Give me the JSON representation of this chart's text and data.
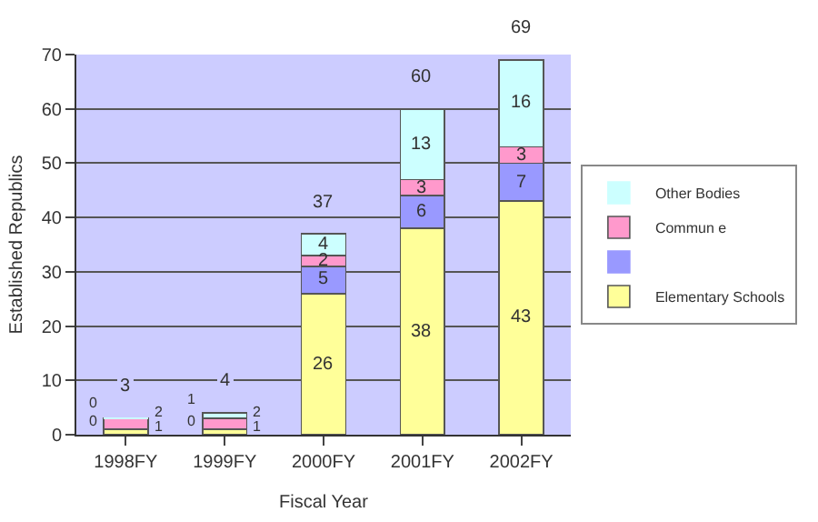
{
  "chart_data": {
    "type": "bar",
    "stacked": true,
    "xlabel": "Fiscal Year",
    "ylabel": "Established Republics",
    "categories": [
      "1998FY",
      "1999FY",
      "2000FY",
      "2001FY",
      "2002FY"
    ],
    "series": [
      {
        "name": "Elementary Schools",
        "color": "#ffff99",
        "values": [
          1,
          1,
          26,
          38,
          43
        ]
      },
      {
        "color": "#9999ff",
        "values": [
          0,
          0,
          5,
          6,
          7
        ]
      },
      {
        "name": "Commun e",
        "color": "#ff99cc",
        "values": [
          2,
          2,
          2,
          3,
          3
        ]
      },
      {
        "name": "Other Bodies",
        "color": "#ccffff",
        "values": [
          0,
          1,
          4,
          13,
          16
        ]
      }
    ],
    "totals": [
      "3",
      "4",
      "37",
      "60",
      "69"
    ],
    "data_labels": true,
    "ylim": [
      0,
      70
    ],
    "yticks": [
      0,
      10,
      20,
      30,
      40,
      50,
      60,
      70
    ],
    "grid": "y",
    "legend": "right"
  }
}
